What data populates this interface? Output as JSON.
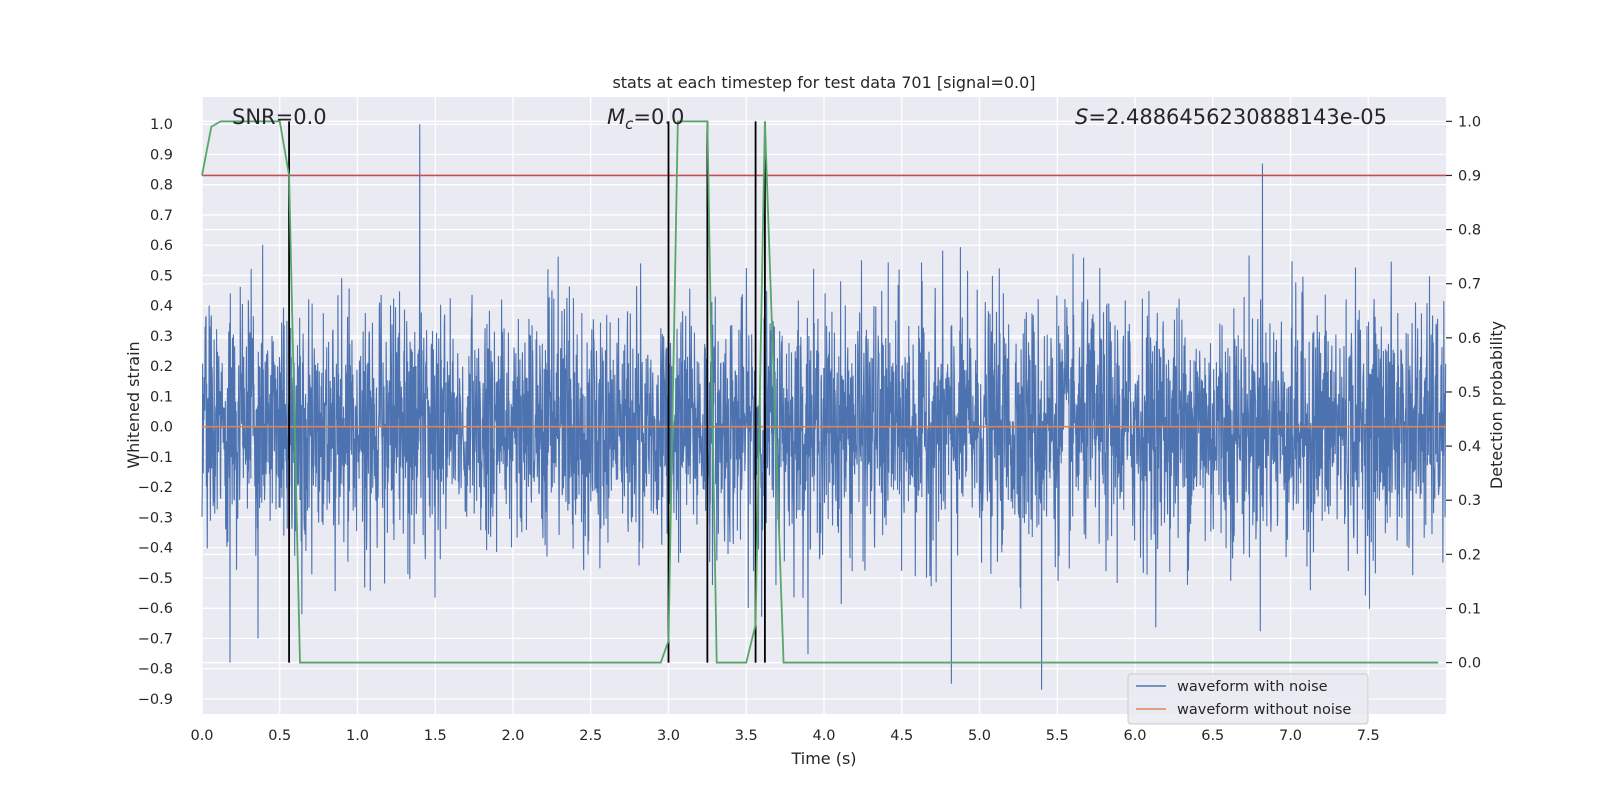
{
  "chart_data": {
    "type": "line",
    "title": "stats at each timestep for test data 701 [signal=0.0]",
    "xlabel": "Time (s)",
    "ylabel": "Whitened strain",
    "ylabel_right": "Detection probability",
    "xlim": [
      0.0,
      8.0
    ],
    "ylim": [
      -0.95,
      1.09
    ],
    "ylim_right": [
      -0.095,
      1.045
    ],
    "xticks": [
      0.0,
      0.5,
      1.0,
      1.5,
      2.0,
      2.5,
      3.0,
      3.5,
      4.0,
      4.5,
      5.0,
      5.5,
      6.0,
      6.5,
      7.0,
      7.5
    ],
    "xtick_labels": [
      "0.0",
      "0.5",
      "1.0",
      "1.5",
      "2.0",
      "2.5",
      "3.0",
      "3.5",
      "4.0",
      "4.5",
      "5.0",
      "5.5",
      "6.0",
      "6.5",
      "7.0",
      "7.5"
    ],
    "yticks": [
      1.0,
      0.9,
      0.8,
      0.7,
      0.6,
      0.5,
      0.4,
      0.3,
      0.2,
      0.1,
      0.0,
      -0.1,
      -0.2,
      -0.3,
      -0.4,
      -0.5,
      -0.6,
      -0.7,
      -0.8,
      -0.9
    ],
    "ytick_labels": [
      "1.0",
      "0.9",
      "0.8",
      "0.7",
      "0.6",
      "0.5",
      "0.4",
      "0.3",
      "0.2",
      "0.1",
      "0.0",
      "−0.1",
      "−0.2",
      "−0.3",
      "−0.4",
      "−0.5",
      "−0.6",
      "−0.7",
      "−0.8",
      "−0.9"
    ],
    "yticks_right": [
      1.0,
      0.9,
      0.8,
      0.7,
      0.6,
      0.5,
      0.4,
      0.3,
      0.2,
      0.1,
      0.0
    ],
    "ytick_labels_right": [
      "1.0",
      "0.9",
      "0.8",
      "0.7",
      "0.6",
      "0.5",
      "0.4",
      "0.3",
      "0.2",
      "0.1",
      "0.0"
    ],
    "grid": true,
    "legend_position": "lower right",
    "annotations": {
      "snr": "SNR=0.0",
      "mc_symbol": "M",
      "mc_subscript": "c",
      "mc_value": "=0.0",
      "s_symbol": "S",
      "s_value": "=2.4886456230888143e-05"
    },
    "series": [
      {
        "name": "waveform with noise",
        "color": "#4c72b0",
        "axis": "left",
        "description_values": "dense random noise samples",
        "noise_envelope": [
          -0.87,
          1.0
        ],
        "notable_peaks": [
          [
            1.4,
            1.0
          ],
          [
            6.82,
            0.87
          ],
          [
            5.4,
            -0.87
          ],
          [
            4.82,
            -0.85
          ],
          [
            0.18,
            -0.78
          ],
          [
            0.36,
            -0.7
          ]
        ]
      },
      {
        "name": "waveform without noise",
        "color": "#dd8452",
        "axis": "left",
        "x": [
          0.0,
          8.0
        ],
        "y": [
          0.0,
          0.0
        ]
      },
      {
        "name": "detection probability",
        "color": "#55a868",
        "axis": "right",
        "x": [
          0.0,
          0.06,
          0.12,
          0.5,
          0.56,
          0.63,
          2.95,
          3.0,
          3.06,
          3.1,
          3.25,
          3.31,
          3.38,
          3.5,
          3.56,
          3.62,
          3.68,
          3.74,
          7.95
        ],
        "y": [
          0.9,
          0.99,
          1.0,
          1.0,
          0.9,
          0.0,
          0.0,
          0.04,
          1.0,
          1.0,
          1.0,
          0.0,
          0.0,
          0.0,
          0.07,
          1.0,
          0.5,
          0.0,
          0.0
        ]
      }
    ],
    "threshold_line": {
      "axis": "right",
      "value": 0.9,
      "color": "#c44e52"
    },
    "vertical_markers": {
      "color": "#000000",
      "x": [
        0.56,
        3.0,
        3.25,
        3.56,
        3.62
      ],
      "y_right_range": [
        0.0,
        1.0
      ]
    },
    "legend": {
      "items": [
        {
          "label": "waveform with noise",
          "color": "#4c72b0"
        },
        {
          "label": "waveform without noise",
          "color": "#dd8452"
        }
      ]
    }
  }
}
